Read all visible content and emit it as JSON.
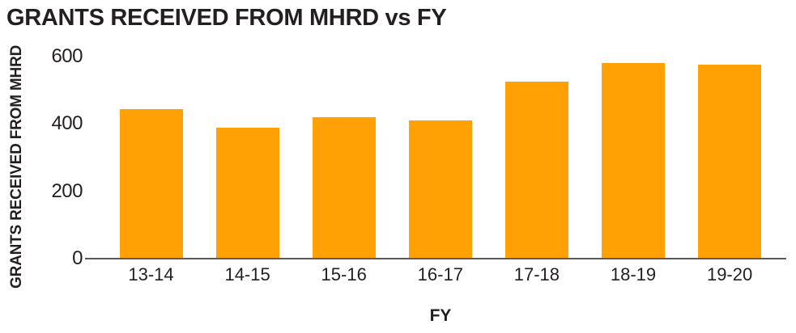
{
  "chart_data": {
    "type": "bar",
    "title": "GRANTS RECEIVED FROM MHRD vs FY",
    "xlabel": "FY",
    "ylabel": "GRANTS RECEIVED FROM MHRD",
    "categories": [
      "13-14",
      "14-15",
      "15-16",
      "16-17",
      "17-18",
      "18-19",
      "19-20"
    ],
    "values": [
      445,
      390,
      420,
      410,
      525,
      580,
      575
    ],
    "yticks": [
      0,
      200,
      400,
      600
    ],
    "ylim": [
      0,
      600
    ],
    "grid": false,
    "legend": false,
    "colors": {
      "bar": "#FFA005",
      "axis_line": "#58595B",
      "text": "#231F20"
    }
  }
}
